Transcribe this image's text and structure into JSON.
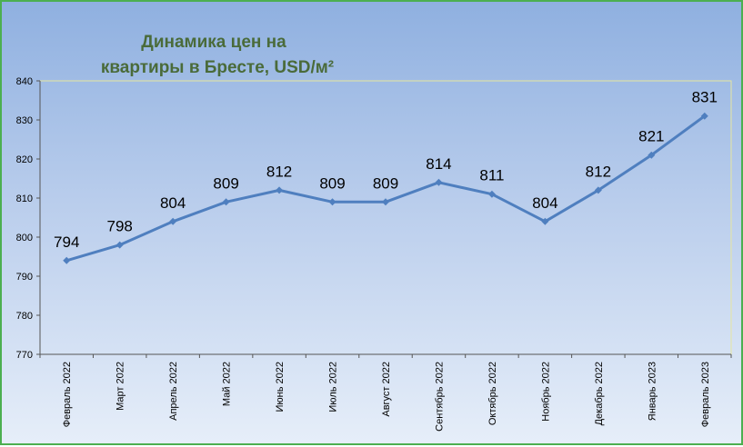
{
  "chart_data": {
    "type": "line",
    "title_lines": [
      "Динамика цен на",
      "квартиры в Бресте, USD/м²"
    ],
    "categories": [
      "Февраль 2022",
      "Март 2022",
      "Апрель 2022",
      "Май 2022",
      "Июнь 2022",
      "Июль 2022",
      "Август 2022",
      "Сентябрь 2022",
      "Октябрь 2022",
      "Ноябрь 2022",
      "Декабрь 2022",
      "Январь 2023",
      "Февраль 2023"
    ],
    "values": [
      794,
      798,
      804,
      809,
      812,
      809,
      809,
      814,
      811,
      804,
      812,
      821,
      831
    ],
    "ylim": [
      770,
      840
    ],
    "yticks": [
      770,
      780,
      790,
      800,
      810,
      820,
      830,
      840
    ],
    "grid": false,
    "colors": {
      "line": "#4f7fbf",
      "frame_border": "#4caf50",
      "plot_border": "#e6e6a0",
      "title": "#4a6b3a"
    }
  }
}
